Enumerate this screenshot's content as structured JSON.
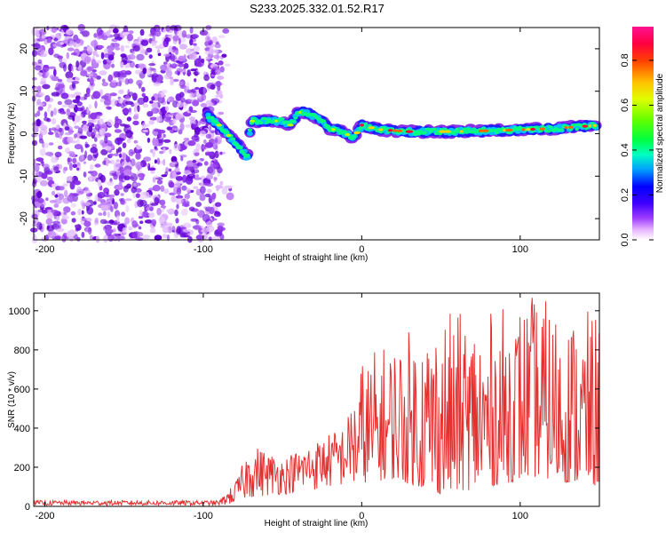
{
  "title": "S233.2025.332.01.52.R17",
  "chart_data": [
    {
      "type": "heatmap",
      "xlabel": "Height of straight line (km)",
      "ylabel": "Frequency (Hz)",
      "xlim": [
        -207,
        150
      ],
      "ylim": [
        -25,
        25
      ],
      "xticks": [
        -200,
        -100,
        0,
        100
      ],
      "yticks": [
        -20,
        -10,
        0,
        10,
        20
      ],
      "colorbar": {
        "label": "Normalized spectral amplitude",
        "range": [
          0,
          0.95
        ],
        "ticks": [
          "0.0",
          "0.2",
          "0.4",
          "0.6",
          "0.8"
        ],
        "tick_values": [
          0.0,
          0.2,
          0.4,
          0.6,
          0.8
        ],
        "colors": [
          "#ffffff",
          "#e080ff",
          "#8000ff",
          "#0000ff",
          "#00c0ff",
          "#00ff80",
          "#40ff00",
          "#c0ff00",
          "#ffd000",
          "#ff6000",
          "#ff0030",
          "#ff0080"
        ]
      },
      "signal_trace": [
        {
          "x": -97,
          "y": 4
        },
        {
          "x": -90,
          "y": 2
        },
        {
          "x": -85,
          "y": 0
        },
        {
          "x": -80,
          "y": -2
        },
        {
          "x": -75,
          "y": -4
        },
        {
          "x": -72,
          "y": -6
        },
        {
          "x": -70,
          "y": 3
        },
        {
          "x": -60,
          "y": 3
        },
        {
          "x": -50,
          "y": 3
        },
        {
          "x": -45,
          "y": 2
        },
        {
          "x": -40,
          "y": 5
        },
        {
          "x": -35,
          "y": 5
        },
        {
          "x": -30,
          "y": 4
        },
        {
          "x": -25,
          "y": 3
        },
        {
          "x": -20,
          "y": 1
        },
        {
          "x": -15,
          "y": 1
        },
        {
          "x": -10,
          "y": 0
        },
        {
          "x": -5,
          "y": -1
        },
        {
          "x": 0,
          "y": 2
        },
        {
          "x": 10,
          "y": 1
        },
        {
          "x": 30,
          "y": 0.5
        },
        {
          "x": 60,
          "y": 0.5
        },
        {
          "x": 90,
          "y": 0.8
        },
        {
          "x": 120,
          "y": 1.2
        },
        {
          "x": 150,
          "y": 2
        }
      ],
      "noise_region": {
        "x_from": -207,
        "x_to": -88
      }
    },
    {
      "type": "line",
      "xlabel": "Height of straight line (km)",
      "ylabel": "SNR (10 * v/v)",
      "xlim": [
        -207,
        150
      ],
      "ylim": [
        0,
        1090
      ],
      "xticks": [
        -200,
        -100,
        0,
        100
      ],
      "yticks": [
        0,
        200,
        400,
        600,
        800,
        1000
      ],
      "series": [
        {
          "name": "SNR",
          "color": "#e53030",
          "envelope": [
            {
              "x": -207,
              "lo": 5,
              "hi": 30
            },
            {
              "x": -90,
              "lo": 5,
              "hi": 30
            },
            {
              "x": -80,
              "lo": 10,
              "hi": 120
            },
            {
              "x": -70,
              "lo": 40,
              "hi": 320
            },
            {
              "x": -50,
              "lo": 60,
              "hi": 250
            },
            {
              "x": -30,
              "lo": 80,
              "hi": 330
            },
            {
              "x": -10,
              "lo": 100,
              "hi": 420
            },
            {
              "x": 0,
              "lo": 120,
              "hi": 760
            },
            {
              "x": 20,
              "lo": 140,
              "hi": 860
            },
            {
              "x": 50,
              "lo": 60,
              "hi": 1000
            },
            {
              "x": 80,
              "lo": 100,
              "hi": 990
            },
            {
              "x": 110,
              "lo": 150,
              "hi": 1090
            },
            {
              "x": 130,
              "lo": 120,
              "hi": 990
            },
            {
              "x": 150,
              "lo": 100,
              "hi": 1000
            }
          ]
        }
      ]
    }
  ]
}
